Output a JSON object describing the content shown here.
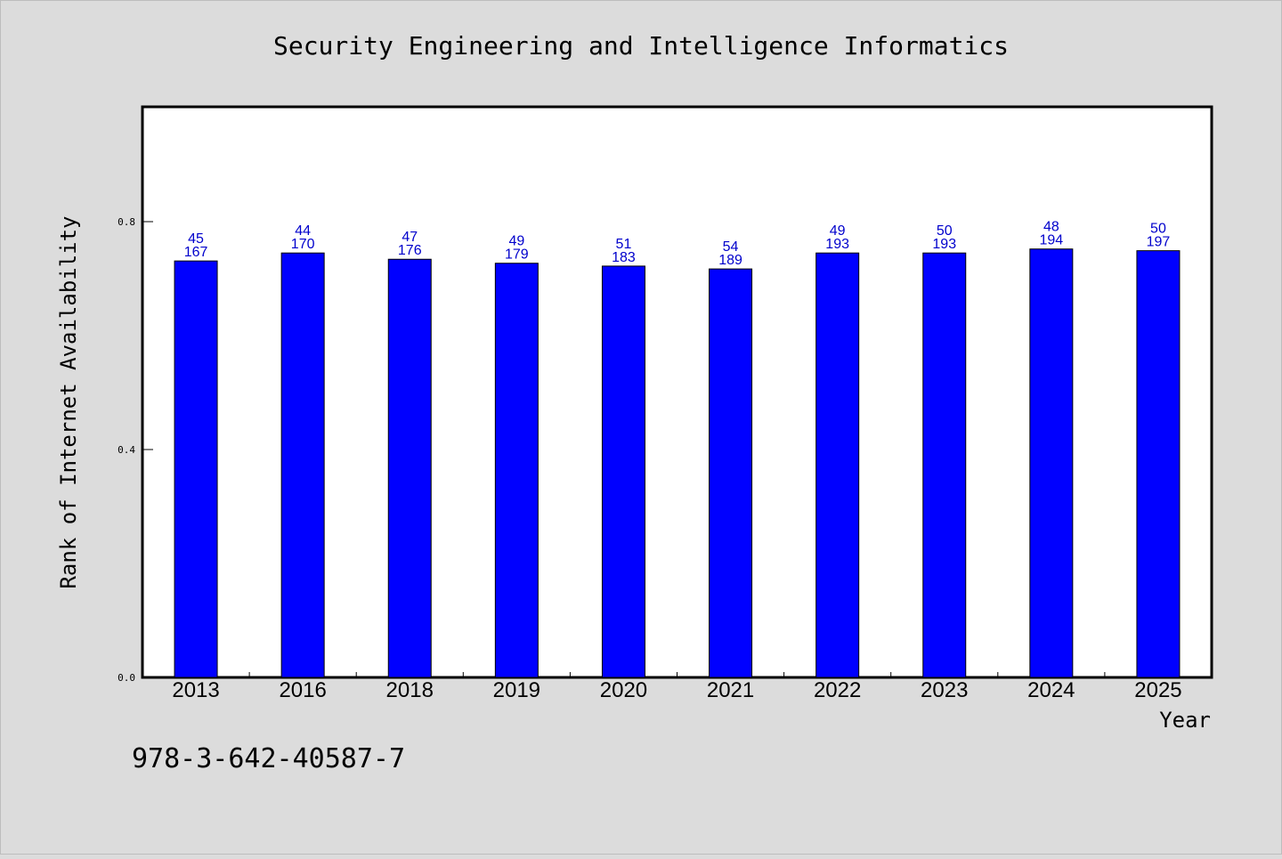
{
  "title": "Security Engineering and Intelligence Informatics",
  "footer_text": "978-3-642-40587-7",
  "colors": {
    "background": "#dcdcdc",
    "plot_background": "#ffffff",
    "bar_fill": "#0000ff",
    "label_color": "#0000cc"
  },
  "chart_data": {
    "type": "bar",
    "title": "Security Engineering and Intelligence Informatics",
    "xlabel": "Year",
    "ylabel": "Rank of Internet Availability",
    "categories": [
      "2013",
      "2016",
      "2018",
      "2019",
      "2020",
      "2021",
      "2022",
      "2023",
      "2024",
      "2025"
    ],
    "values": [
      0.731,
      0.745,
      0.734,
      0.727,
      0.722,
      0.717,
      0.745,
      0.745,
      0.752,
      0.749
    ],
    "label_top": [
      "45",
      "44",
      "47",
      "49",
      "51",
      "54",
      "49",
      "50",
      "48",
      "50"
    ],
    "label_bottom": [
      "167",
      "170",
      "176",
      "179",
      "183",
      "189",
      "193",
      "193",
      "194",
      "197"
    ],
    "ylim": [
      0,
      1.0
    ],
    "yticks": [
      "0.0",
      "0.4",
      "0.8"
    ],
    "ytick_values": [
      0.0,
      0.4,
      0.8
    ],
    "grid": false,
    "legend": "none"
  }
}
